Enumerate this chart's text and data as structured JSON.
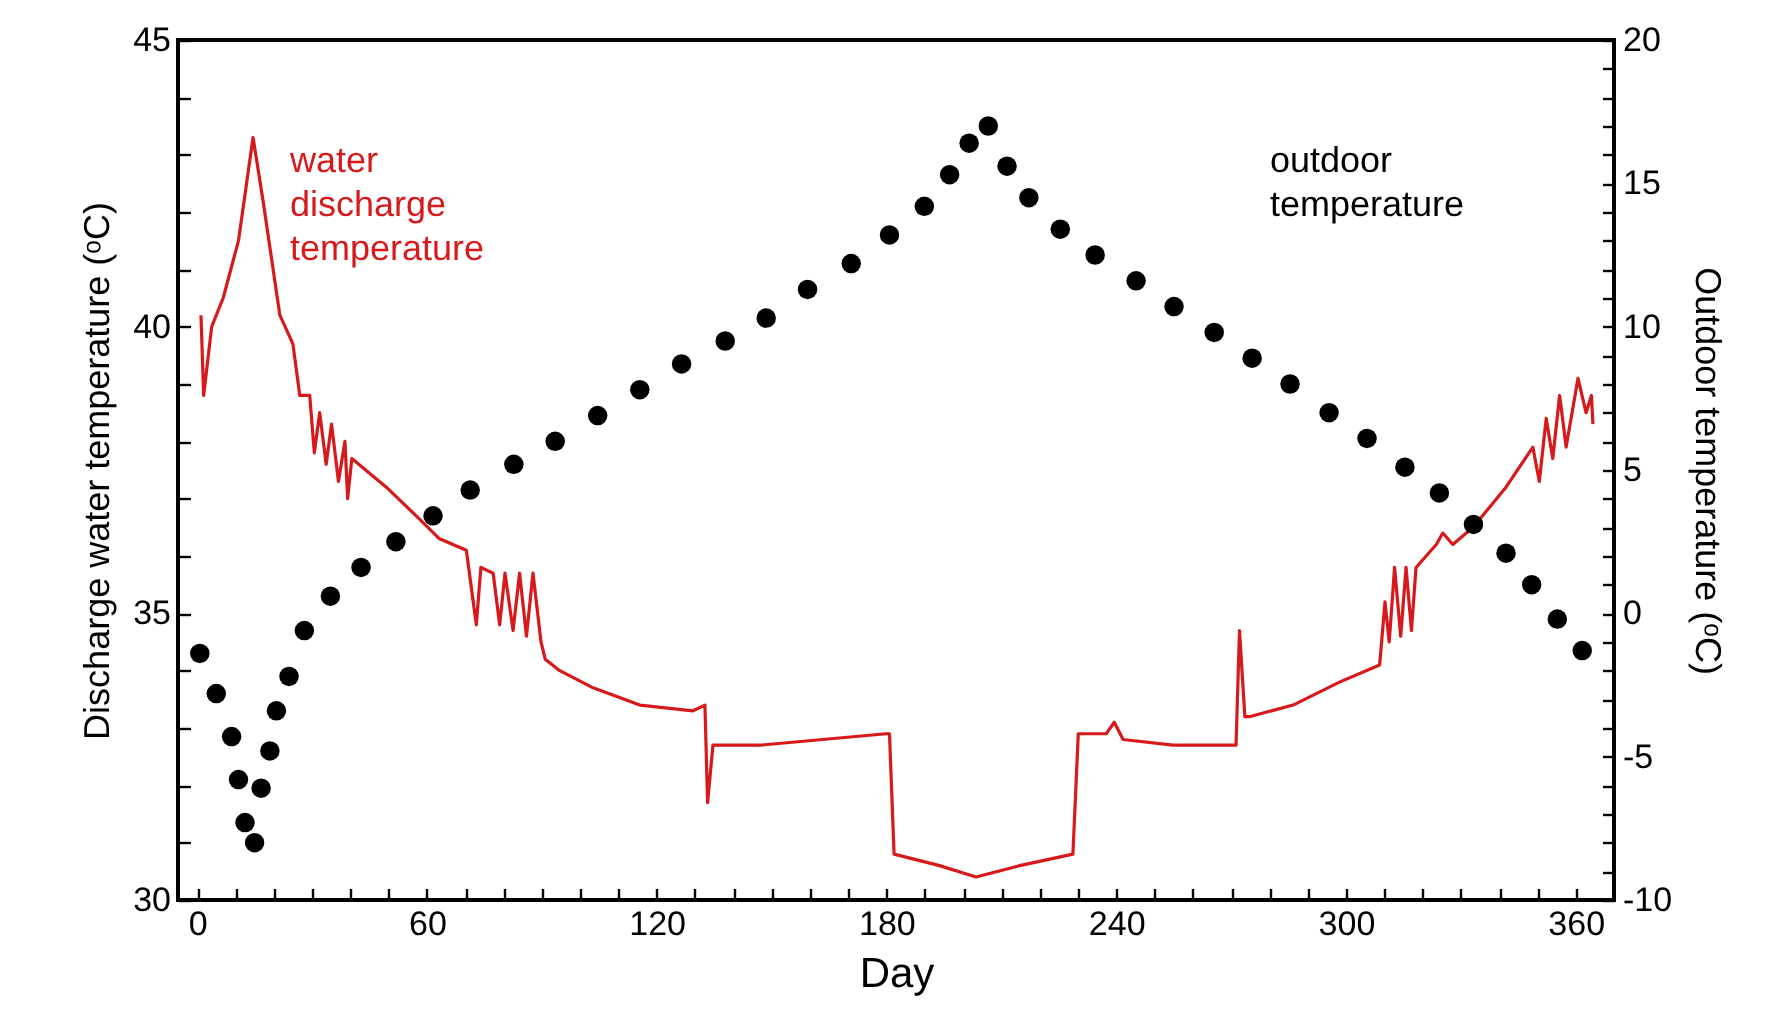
{
  "chart_data": {
    "type": "line",
    "xlabel": "Day",
    "ylabel": "Discharge water temperature (ᵒC)",
    "y2label": "Outdoor temperature (ᵒC)",
    "xlim": [
      -5,
      370
    ],
    "xticks": [
      0,
      {
        "value": 10,
        "label": null
      },
      {
        "value": 20,
        "label": null
      },
      {
        "value": 30,
        "label": null
      },
      {
        "value": 40,
        "label": null
      },
      {
        "value": 50,
        "label": null
      },
      60,
      {
        "value": 70,
        "label": null
      },
      {
        "value": 80,
        "label": null
      },
      {
        "value": 90,
        "label": null
      },
      {
        "value": 100,
        "label": null
      },
      {
        "value": 110,
        "label": null
      },
      120,
      {
        "value": 130,
        "label": null
      },
      {
        "value": 140,
        "label": null
      },
      {
        "value": 150,
        "label": null
      },
      {
        "value": 160,
        "label": null
      },
      {
        "value": 170,
        "label": null
      },
      180,
      {
        "value": 190,
        "label": null
      },
      {
        "value": 200,
        "label": null
      },
      {
        "value": 210,
        "label": null
      },
      {
        "value": 220,
        "label": null
      },
      {
        "value": 230,
        "label": null
      },
      240,
      {
        "value": 250,
        "label": null
      },
      {
        "value": 260,
        "label": null
      },
      {
        "value": 270,
        "label": null
      },
      {
        "value": 280,
        "label": null
      },
      {
        "value": 290,
        "label": null
      },
      300,
      {
        "value": 310,
        "label": null
      },
      {
        "value": 320,
        "label": null
      },
      {
        "value": 330,
        "label": null
      },
      {
        "value": 340,
        "label": null
      },
      {
        "value": 350,
        "label": null
      },
      360
    ],
    "ylim": [
      30,
      45
    ],
    "yticks": [
      30,
      {
        "value": 31,
        "label": null
      },
      {
        "value": 32,
        "label": null
      },
      {
        "value": 33,
        "label": null
      },
      {
        "value": 34,
        "label": null
      },
      35,
      {
        "value": 36,
        "label": null
      },
      {
        "value": 37,
        "label": null
      },
      {
        "value": 38,
        "label": null
      },
      {
        "value": 39,
        "label": null
      },
      40,
      {
        "value": 41,
        "label": null
      },
      {
        "value": 42,
        "label": null
      },
      {
        "value": 43,
        "label": null
      },
      {
        "value": 44,
        "label": null
      },
      45
    ],
    "y2lim": [
      -10,
      20
    ],
    "y2ticks": [
      -10,
      {
        "value": -9,
        "label": null
      },
      {
        "value": -8,
        "label": null
      },
      {
        "value": -7,
        "label": null
      },
      {
        "value": -6,
        "label": null
      },
      -5,
      {
        "value": -4,
        "label": null
      },
      {
        "value": -3,
        "label": null
      },
      {
        "value": -2,
        "label": null
      },
      {
        "value": -1,
        "label": null
      },
      0,
      {
        "value": 1,
        "label": null
      },
      {
        "value": 2,
        "label": null
      },
      {
        "value": 3,
        "label": null
      },
      {
        "value": 4,
        "label": null
      },
      5,
      {
        "value": 6,
        "label": null
      },
      {
        "value": 7,
        "label": null
      },
      {
        "value": 8,
        "label": null
      },
      {
        "value": 9,
        "label": null
      },
      10,
      {
        "value": 11,
        "label": null
      },
      {
        "value": 12,
        "label": null
      },
      {
        "value": 13,
        "label": null
      },
      {
        "value": 14,
        "label": null
      },
      15,
      {
        "value": 16,
        "label": null
      },
      {
        "value": 17,
        "label": null
      },
      {
        "value": 18,
        "label": null
      },
      {
        "value": 19,
        "label": null
      },
      20
    ],
    "series": [
      {
        "name": "water discharge temperature",
        "color": "#d7191c",
        "line_style": "solid",
        "x": [
          1,
          1.7,
          3.8,
          6.8,
          10.8,
          14.6,
          17.2,
          21.6,
          25,
          26.8,
          29.4,
          30.6,
          32,
          33.7,
          35.1,
          36.9,
          38.6,
          39.3,
          40.4,
          49.4,
          57.2,
          63.3,
          70.3,
          72.9,
          74.1,
          77.3,
          79,
          80.4,
          82.5,
          84.2,
          86,
          87.7,
          89.8,
          90.9,
          94.7,
          103.4,
          115.6,
          129.5,
          132.6,
          133.3,
          134.7,
          146.9,
          179.9,
          180.8,
          182,
          193.9,
          203.4,
          214.8,
          228.7,
          230.1,
          237.4,
          239.5,
          241.8,
          254.8,
          271.3,
          272.2,
          273.6,
          275,
          286.2,
          298.3,
          308.8,
          310.2,
          311.3,
          312.7,
          314.3,
          315.7,
          317.1,
          318.3,
          323.6,
          325.3,
          327.9,
          333.2,
          341.8,
          348.8,
          350.5,
          352.3,
          354,
          355.8,
          357.5,
          360.6,
          362.7,
          364.1,
          364.5
        ],
        "values": [
          40.2,
          38.8,
          40.0,
          40.5,
          41.5,
          43.3,
          42.2,
          40.2,
          39.7,
          38.8,
          38.8,
          37.8,
          38.5,
          37.6,
          38.3,
          37.3,
          38.0,
          37.0,
          37.7,
          37.2,
          36.7,
          36.3,
          36.1,
          34.8,
          35.8,
          35.7,
          34.8,
          35.7,
          34.7,
          35.7,
          34.6,
          35.7,
          34.5,
          34.2,
          34.0,
          33.7,
          33.4,
          33.3,
          33.4,
          31.7,
          32.7,
          32.7,
          32.9,
          32.9,
          30.8,
          30.6,
          30.4,
          30.6,
          30.8,
          32.9,
          32.9,
          33.1,
          32.8,
          32.7,
          32.7,
          34.7,
          33.2,
          33.2,
          33.4,
          33.8,
          34.1,
          35.2,
          34.5,
          35.8,
          34.6,
          35.8,
          34.7,
          35.8,
          36.2,
          36.4,
          36.2,
          36.5,
          37.2,
          37.9,
          37.3,
          38.4,
          37.7,
          38.8,
          37.9,
          39.1,
          38.5,
          38.8,
          38.3
        ]
      },
      {
        "name": "outdoor temperature",
        "color": "#000000",
        "type": "scatter",
        "axis": "y2",
        "marker": "circle",
        "x": [
          0.7,
          5,
          9,
          10.8,
          12.5,
          15,
          16.7,
          19,
          20.7,
          24,
          28,
          34.8,
          42.8,
          51.9,
          61.6,
          71.3,
          82.7,
          93.5,
          104.6,
          115.6,
          126.5,
          137.9,
          148.6,
          159.4,
          170.8,
          180.8,
          189.9,
          196.5,
          201.6,
          206.6,
          211.5,
          217.2,
          225.4,
          234.5,
          245.2,
          255.1,
          265.6,
          275.5,
          285.4,
          295.6,
          305.5,
          315.4,
          324.4,
          333.3,
          341.8,
          348.5,
          355.2,
          361.7
        ],
        "values": [
          -1.4,
          -2.8,
          -4.3,
          -5.8,
          -7.3,
          -8.0,
          -6.1,
          -4.8,
          -3.4,
          -2.2,
          -0.6,
          0.6,
          1.6,
          2.5,
          3.4,
          4.3,
          5.2,
          6.0,
          6.9,
          7.8,
          8.7,
          9.5,
          10.3,
          11.3,
          12.2,
          13.2,
          14.2,
          15.3,
          16.4,
          17.0,
          15.6,
          14.5,
          13.4,
          12.5,
          11.6,
          10.7,
          9.8,
          8.9,
          8.0,
          7.0,
          6.1,
          5.1,
          4.2,
          3.1,
          2.1,
          1.0,
          -0.2,
          -1.3
        ]
      }
    ]
  }
}
